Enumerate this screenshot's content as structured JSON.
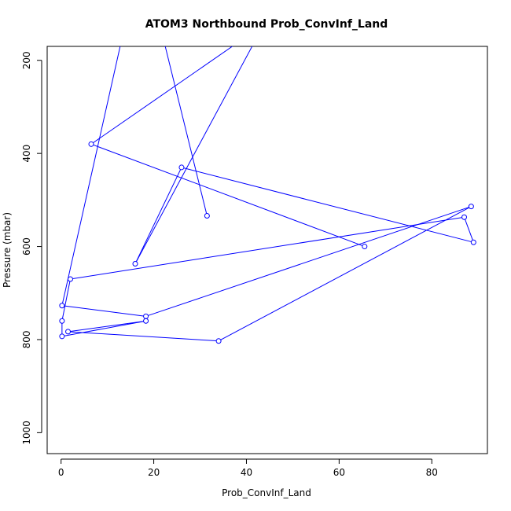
{
  "chart_data": {
    "type": "line",
    "title": "ATOM3 Northbound Prob_ConvInf_Land",
    "xlabel": "Prob_ConvInf_Land",
    "ylabel": "Pressure (mbar)",
    "xlim": [
      -3,
      92
    ],
    "ylim": [
      1045,
      170
    ],
    "y_reversed": true,
    "x_ticks": [
      0,
      20,
      40,
      60,
      80
    ],
    "y_ticks": [
      200,
      400,
      600,
      800,
      1000
    ],
    "grid": false,
    "color": "#0000ff",
    "series": [
      {
        "points": [
          {
            "x": 31.5,
            "y": 534
          },
          {
            "x": 20,
            "y": 70
          },
          {
            "x": 15,
            "y": 70
          },
          {
            "x": 0.2,
            "y": 727
          },
          {
            "x": 18.3,
            "y": 750
          },
          {
            "x": 88.5,
            "y": 514
          },
          {
            "x": 34,
            "y": 803
          },
          {
            "x": 1.5,
            "y": 783
          },
          {
            "x": 18.3,
            "y": 760
          },
          {
            "x": 0.2,
            "y": 793
          },
          {
            "x": 0.2,
            "y": 760
          },
          {
            "x": 2,
            "y": 670
          },
          {
            "x": 87,
            "y": 537
          },
          {
            "x": 89,
            "y": 591
          },
          {
            "x": 26,
            "y": 430
          },
          {
            "x": 16,
            "y": 637
          },
          {
            "x": 45,
            "y": 100
          },
          {
            "x": 50,
            "y": 80
          },
          {
            "x": 6.5,
            "y": 380
          },
          {
            "x": 65.5,
            "y": 600
          }
        ]
      }
    ]
  }
}
